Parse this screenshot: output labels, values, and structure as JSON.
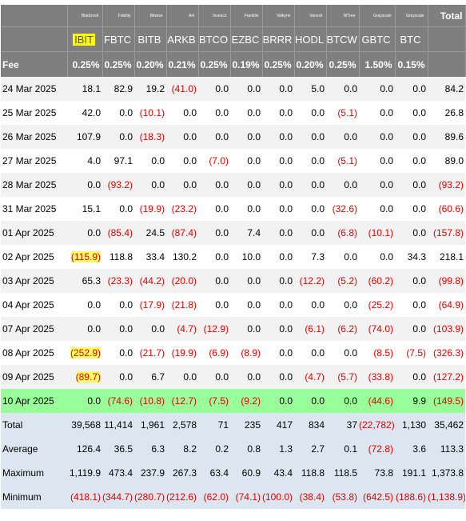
{
  "columns": [
    {
      "issuer": "Blackrock",
      "ticker": "IBIT",
      "fee": "0.25%",
      "highlight": true
    },
    {
      "issuer": "Fidelity",
      "ticker": "FBTC",
      "fee": "0.25%"
    },
    {
      "issuer": "Bitwise",
      "ticker": "BITB",
      "fee": "0.20%"
    },
    {
      "issuer": "Ark",
      "ticker": "ARKB",
      "fee": "0.21%"
    },
    {
      "issuer": "Invesco",
      "ticker": "BTCO",
      "fee": "0.25%"
    },
    {
      "issuer": "Franklin",
      "ticker": "EZBC",
      "fee": "0.19%"
    },
    {
      "issuer": "Valkyrie",
      "ticker": "BRRR",
      "fee": "0.25%"
    },
    {
      "issuer": "Vaneck",
      "ticker": "HODL",
      "fee": "0.20%"
    },
    {
      "issuer": "WTree",
      "ticker": "BTCW",
      "fee": "0.25%"
    },
    {
      "issuer": "Grayscale",
      "ticker": "GBTC",
      "fee": "1.50%"
    },
    {
      "issuer": "Grayscale",
      "ticker": "BTC",
      "fee": "0.15%"
    }
  ],
  "total_header": "Total",
  "fee_label": "Fee",
  "rows": [
    {
      "date": "24 Mar 2025",
      "values": [
        "18.1",
        "82.9",
        "19.2",
        "(41.0)",
        "0.0",
        "0.0",
        "0.0",
        "5.0",
        "0.0",
        "0.0",
        "0.0"
      ],
      "total": "84.2"
    },
    {
      "date": "25 Mar 2025",
      "values": [
        "42.0",
        "0.0",
        "(10.1)",
        "0.0",
        "0.0",
        "0.0",
        "0.0",
        "0.0",
        "(5.1)",
        "0.0",
        "0.0"
      ],
      "total": "26.8"
    },
    {
      "date": "26 Mar 2025",
      "values": [
        "107.9",
        "0.0",
        "(18.3)",
        "0.0",
        "0.0",
        "0.0",
        "0.0",
        "0.0",
        "0.0",
        "0.0",
        "0.0"
      ],
      "total": "89.6"
    },
    {
      "date": "27 Mar 2025",
      "values": [
        "4.0",
        "97.1",
        "0.0",
        "0.0",
        "(7.0)",
        "0.0",
        "0.0",
        "0.0",
        "(5.1)",
        "0.0",
        "0.0"
      ],
      "total": "89.0"
    },
    {
      "date": "28 Mar 2025",
      "values": [
        "0.0",
        "(93.2)",
        "0.0",
        "0.0",
        "0.0",
        "0.0",
        "0.0",
        "0.0",
        "0.0",
        "0.0",
        "0.0"
      ],
      "total": "(93.2)"
    },
    {
      "date": "31 Mar 2025",
      "values": [
        "15.1",
        "0.0",
        "(19.9)",
        "(23.2)",
        "0.0",
        "0.0",
        "0.0",
        "0.0",
        "(32.6)",
        "0.0",
        "0.0"
      ],
      "total": "(60.6)"
    },
    {
      "date": "01 Apr 2025",
      "values": [
        "0.0",
        "(85.4)",
        "24.5",
        "(87.4)",
        "0.0",
        "7.4",
        "0.0",
        "0.0",
        "(6.8)",
        "(10.1)",
        "0.0"
      ],
      "total": "(157.8)"
    },
    {
      "date": "02 Apr 2025",
      "values": [
        "(115.9)",
        "118.8",
        "33.4",
        "130.2",
        "0.0",
        "10.0",
        "0.0",
        "7.3",
        "0.0",
        "0.0",
        "34.3"
      ],
      "total": "218.1",
      "mark": [
        0
      ]
    },
    {
      "date": "03 Apr 2025",
      "values": [
        "65.3",
        "(23.3)",
        "(44.2)",
        "(20.0)",
        "0.0",
        "0.0",
        "0.0",
        "(12.2)",
        "(5.2)",
        "(60.2)",
        "0.0"
      ],
      "total": "(99.8)"
    },
    {
      "date": "04 Apr 2025",
      "values": [
        "0.0",
        "0.0",
        "(17.9)",
        "(21.8)",
        "0.0",
        "0.0",
        "0.0",
        "0.0",
        "0.0",
        "(25.2)",
        "0.0"
      ],
      "total": "(64.9)"
    },
    {
      "date": "07 Apr 2025",
      "values": [
        "0.0",
        "0.0",
        "0.0",
        "(4.7)",
        "(12.9)",
        "0.0",
        "0.0",
        "(6.1)",
        "(6.2)",
        "(74.0)",
        "0.0"
      ],
      "total": "(103.9)"
    },
    {
      "date": "08 Apr 2025",
      "values": [
        "(252.9)",
        "0.0",
        "(21.7)",
        "(19.9)",
        "(6.9)",
        "(8.9)",
        "0.0",
        "0.0",
        "0.0",
        "(8.5)",
        "(7.5)"
      ],
      "total": "(326.3)",
      "mark": [
        0
      ]
    },
    {
      "date": "09 Apr 2025",
      "values": [
        "(89.7)",
        "0.0",
        "6.7",
        "0.0",
        "0.0",
        "0.0",
        "0.0",
        "(4.7)",
        "(5.7)",
        "(33.8)",
        "0.0"
      ],
      "total": "(127.2)",
      "mark": [
        0
      ]
    },
    {
      "date": "10 Apr 2025",
      "values": [
        "0.0",
        "(74.6)",
        "(10.8)",
        "(12.7)",
        "(7.5)",
        "(9.2)",
        "0.0",
        "0.0",
        "0.0",
        "(44.6)",
        "9.9"
      ],
      "total": "(149.5)",
      "latest": true
    }
  ],
  "summary": [
    {
      "label": "Total",
      "values": [
        "39,568",
        "11,414",
        "1,961",
        "2,578",
        "71",
        "235",
        "417",
        "834",
        "37",
        "(22,782)",
        "1,130"
      ],
      "total": "35,462"
    },
    {
      "label": "Average",
      "values": [
        "126.4",
        "36.5",
        "6.3",
        "8.2",
        "0.2",
        "0.8",
        "1.3",
        "2.7",
        "0.1",
        "(72.8)",
        "3.6"
      ],
      "total": "113.3"
    },
    {
      "label": "Maximum",
      "values": [
        "1,119.9",
        "473.4",
        "237.9",
        "267.3",
        "63.4",
        "60.9",
        "43.4",
        "118.8",
        "118.5",
        "73.8",
        "191.1"
      ],
      "total": "1,373.8"
    },
    {
      "label": "Minimum",
      "values": [
        "(418.1)",
        "(344.7)",
        "(280.7)",
        "(212.6)",
        "(62.0)",
        "(74.1)",
        "(100.0)",
        "(38.4)",
        "(53.8)",
        "(642.5)",
        "(188.6)"
      ],
      "total": "(1,138.9)"
    }
  ],
  "colors": {
    "header_bg": "#7f7f7f",
    "negative": "#e00000",
    "latest_row": "#99ff99",
    "summary_bg": "#dce6f1",
    "highlight": "#ffff00"
  }
}
